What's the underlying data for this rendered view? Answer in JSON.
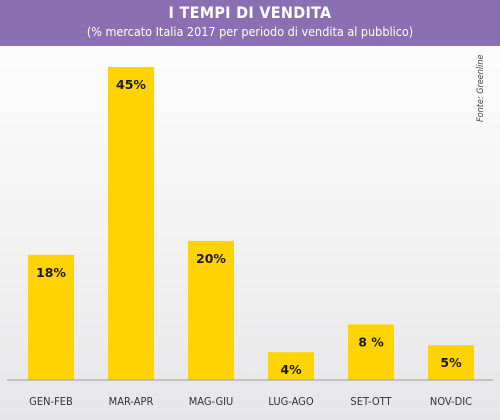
{
  "header": {
    "title": "I TEMPI DI VENDITA",
    "subtitle": "(% mercato Italia 2017 per periodo di vendita al pubblico)"
  },
  "source": "Fonte: Greenline",
  "colors": {
    "header_bg": "#8a70b2",
    "bar": "#fed400",
    "axis": "#9a9a9a",
    "text": "#1a1a1a"
  },
  "chart_data": {
    "type": "bar",
    "title": "I TEMPI DI VENDITA",
    "subtitle": "(% mercato Italia 2017 per periodo di vendita al pubblico)",
    "categories": [
      "GEN-FEB",
      "MAR-APR",
      "MAG-GIU",
      "LUG-AGO",
      "SET-OTT",
      "NOV-DIC"
    ],
    "values": [
      18,
      45,
      20,
      4,
      8,
      5
    ],
    "value_labels": [
      "18%",
      "45%",
      "20%",
      "4%",
      "8 %",
      "5%"
    ],
    "xlabel": "",
    "ylabel": "",
    "ylim": [
      0,
      45
    ],
    "grid": false,
    "legend": "none"
  }
}
